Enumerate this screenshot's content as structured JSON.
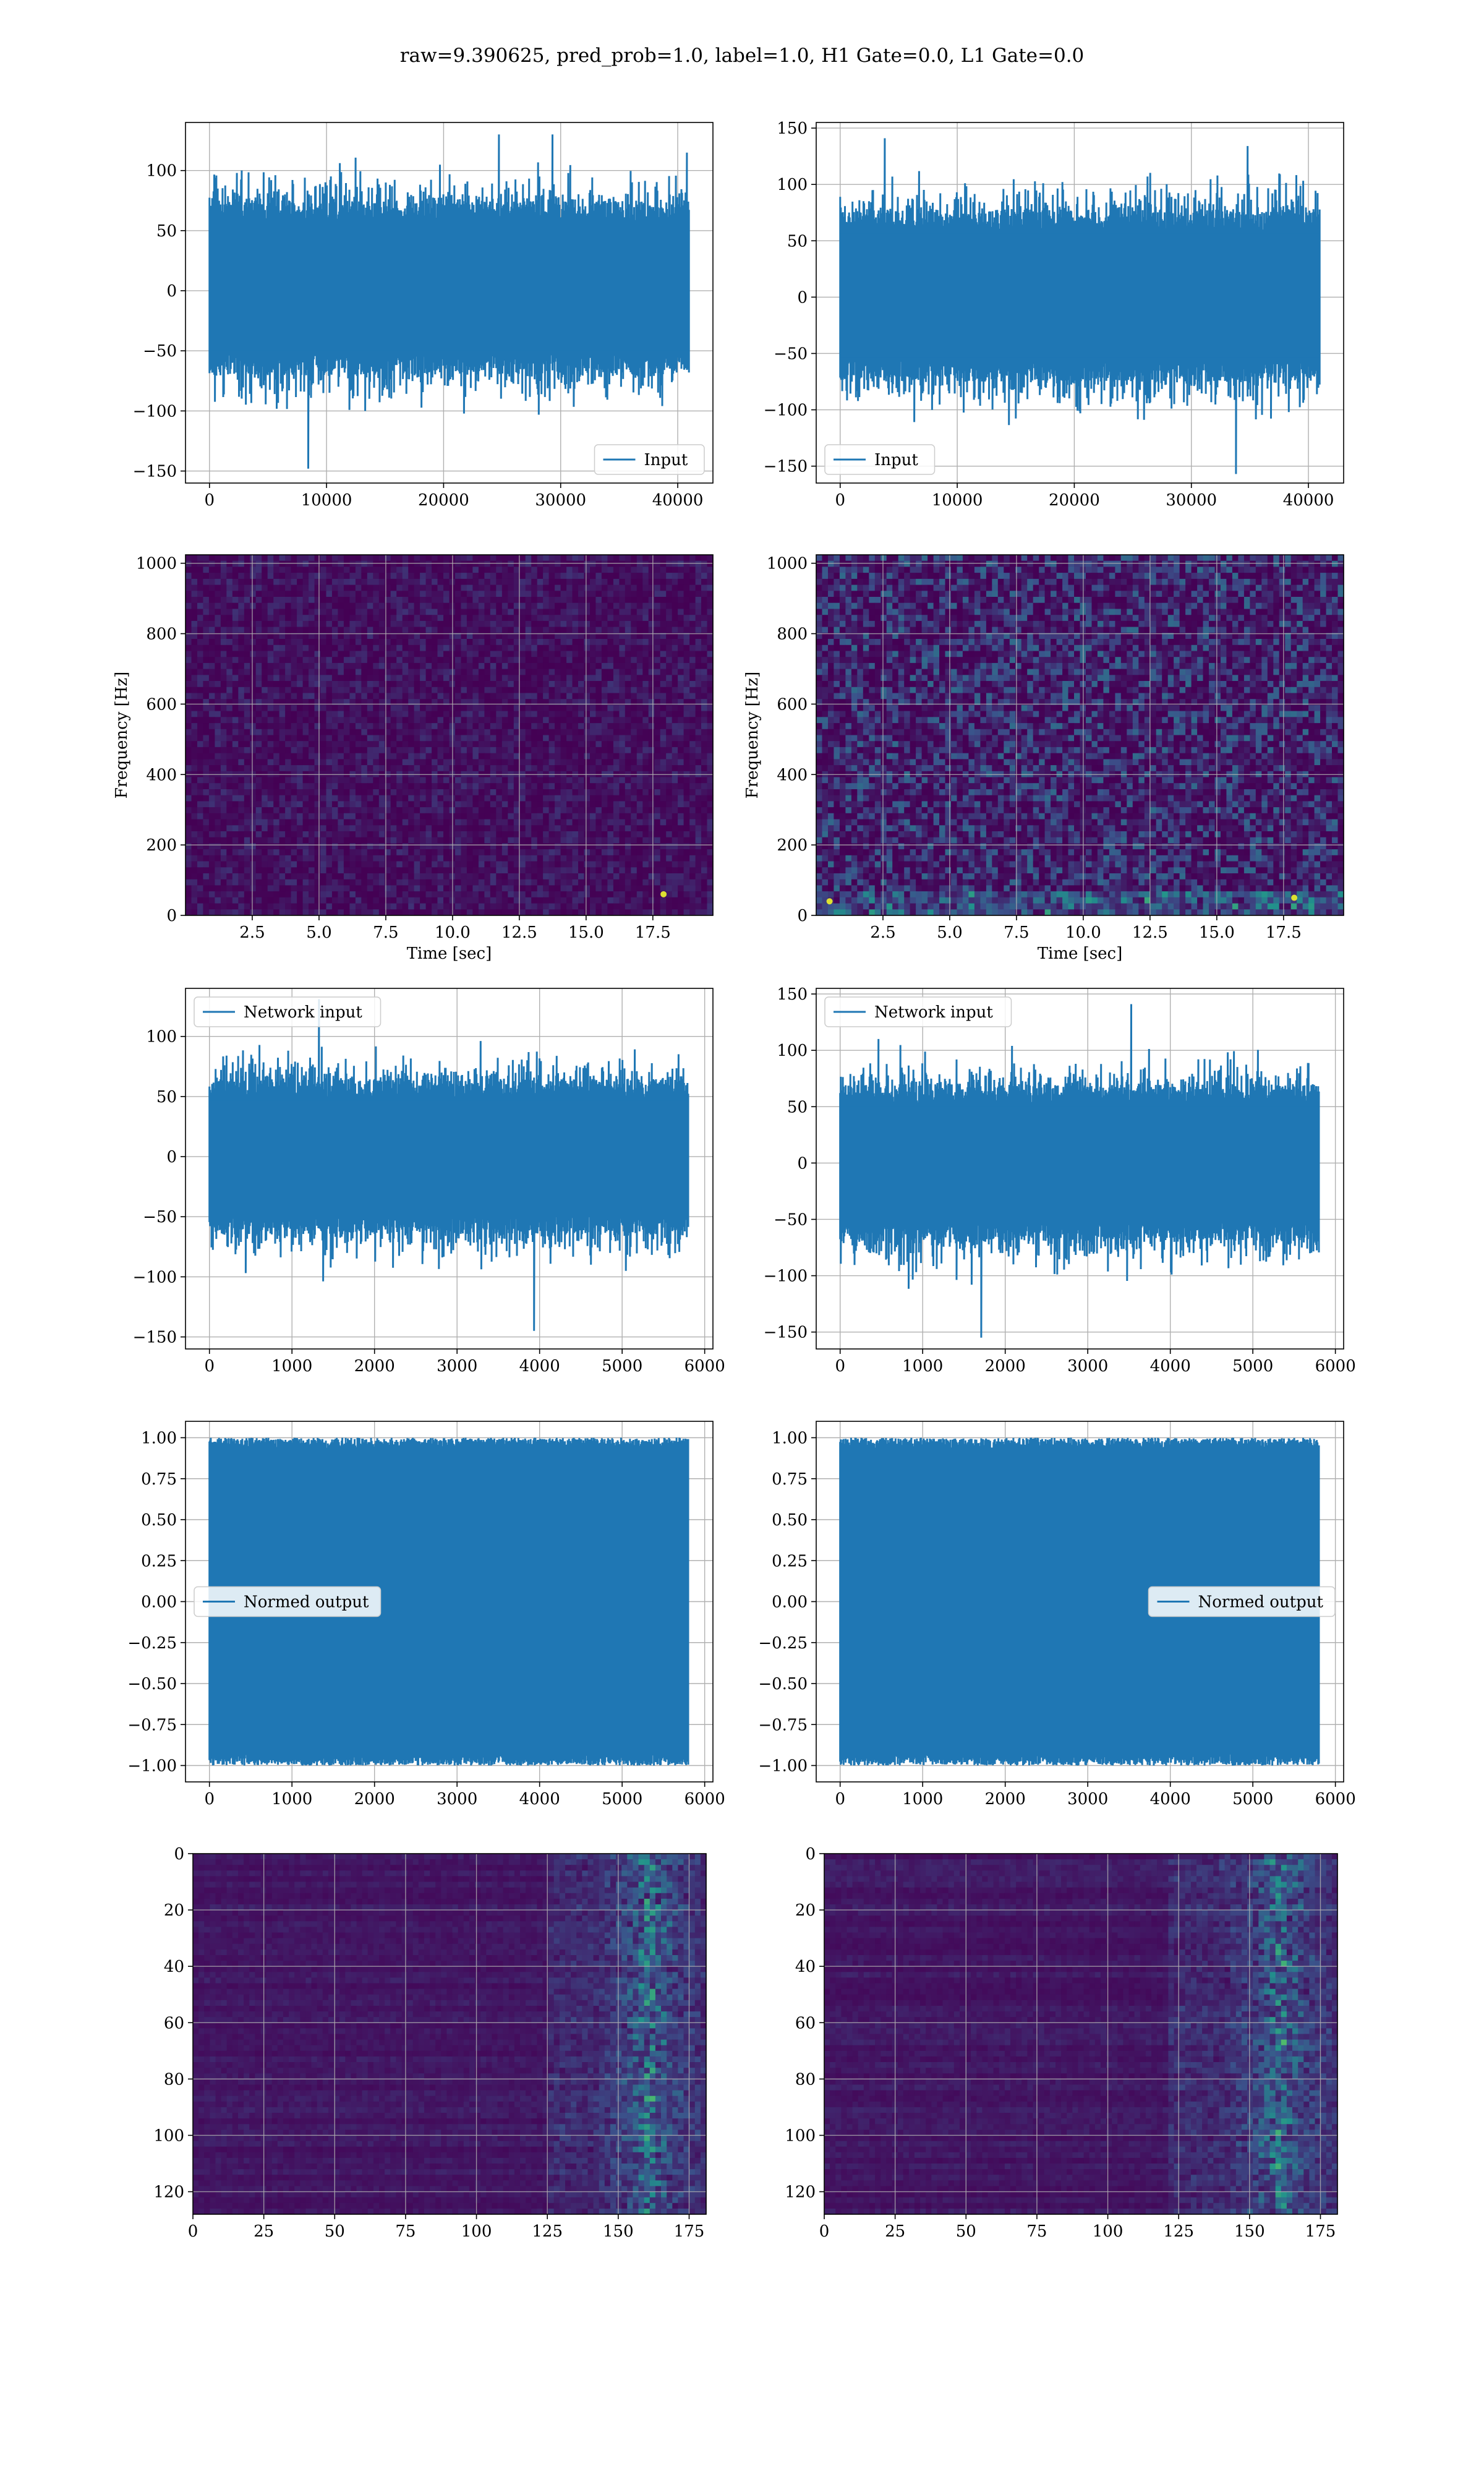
{
  "suptitle": "raw=9.390625, pred_prob=1.0, label=1.0, H1 Gate=0.0, L1 Gate=0.0",
  "colors": {
    "line": "#1f77b4",
    "grid": "#b0b0b0",
    "spine": "#000000",
    "heat_low": "#440154",
    "heat_high": "#fde725"
  },
  "chart_data": [
    {
      "id": "row1-left",
      "type": "line",
      "legend": "Input",
      "legend_loc": "lower right",
      "xlim": [
        -2048,
        43008
      ],
      "ylim": [
        -160,
        140
      ],
      "xticks": [
        0,
        10000,
        20000,
        30000,
        40000
      ],
      "yticks": [
        -150,
        -100,
        -50,
        0,
        50,
        100
      ],
      "series": [
        {
          "n": 40960,
          "x_range": [
            0,
            40960
          ],
          "band": [
            -70,
            75
          ],
          "min": -148,
          "max": 130
        }
      ]
    },
    {
      "id": "row1-right",
      "type": "line",
      "legend": "Input",
      "legend_loc": "lower left",
      "xlim": [
        -2048,
        43008
      ],
      "ylim": [
        -165,
        155
      ],
      "xticks": [
        0,
        10000,
        20000,
        30000,
        40000
      ],
      "yticks": [
        -150,
        -100,
        -50,
        0,
        50,
        100,
        150
      ],
      "series": [
        {
          "n": 40960,
          "x_range": [
            0,
            40960
          ],
          "band": [
            -75,
            78
          ],
          "min": -157,
          "max": 141
        }
      ]
    },
    {
      "id": "row2-left",
      "type": "heatmap",
      "xlabel": "Time [sec]",
      "ylabel": "Frequency [Hz]",
      "xlim": [
        0,
        19.75
      ],
      "ylim": [
        0,
        1024
      ],
      "xticks": [
        2.5,
        5.0,
        7.5,
        10.0,
        12.5,
        15.0,
        17.5
      ],
      "yticks": [
        0,
        200,
        400,
        600,
        800,
        1000
      ],
      "intensity": "low",
      "hotspots": [
        {
          "t": 17.9,
          "f": 60
        }
      ]
    },
    {
      "id": "row2-right",
      "type": "heatmap",
      "xlabel": "Time [sec]",
      "ylabel": "Frequency [Hz]",
      "xlim": [
        0,
        19.75
      ],
      "ylim": [
        0,
        1024
      ],
      "xticks": [
        2.5,
        5.0,
        7.5,
        10.0,
        12.5,
        15.0,
        17.5
      ],
      "yticks": [
        0,
        200,
        400,
        600,
        800,
        1000
      ],
      "intensity": "medium",
      "hotspots": [
        {
          "t": 0.5,
          "f": 40
        },
        {
          "t": 17.9,
          "f": 50
        }
      ]
    },
    {
      "id": "row3-left",
      "type": "line",
      "legend": "Network input",
      "legend_loc": "upper left",
      "xlim": [
        -290,
        6100
      ],
      "ylim": [
        -160,
        140
      ],
      "xticks": [
        0,
        1000,
        2000,
        3000,
        4000,
        5000,
        6000
      ],
      "yticks": [
        -150,
        -100,
        -50,
        0,
        50,
        100
      ],
      "series": [
        {
          "n": 5800,
          "x_range": [
            0,
            5800
          ],
          "band": [
            -65,
            65
          ],
          "min": -145,
          "max": 131
        }
      ]
    },
    {
      "id": "row3-right",
      "type": "line",
      "legend": "Network input",
      "legend_loc": "upper left",
      "xlim": [
        -290,
        6100
      ],
      "ylim": [
        -165,
        155
      ],
      "xticks": [
        0,
        1000,
        2000,
        3000,
        4000,
        5000,
        6000
      ],
      "yticks": [
        -150,
        -100,
        -50,
        0,
        50,
        100,
        150
      ],
      "series": [
        {
          "n": 5800,
          "x_range": [
            0,
            5800
          ],
          "band": [
            -70,
            70
          ],
          "min": -155,
          "max": 141
        }
      ]
    },
    {
      "id": "row4-left",
      "type": "line",
      "legend": "Normed output",
      "legend_loc": "center left",
      "xlim": [
        -290,
        6100
      ],
      "ylim": [
        -1.1,
        1.1
      ],
      "xticks": [
        0,
        1000,
        2000,
        3000,
        4000,
        5000,
        6000
      ],
      "yticks": [
        -1.0,
        -0.75,
        -0.5,
        -0.25,
        0.0,
        0.25,
        0.5,
        0.75,
        1.0
      ],
      "ytick_labels": [
        "−1.00",
        "−0.75",
        "−0.50",
        "−0.25",
        "0.00",
        "0.25",
        "0.50",
        "0.75",
        "1.00"
      ],
      "series": [
        {
          "n": 5800,
          "x_range": [
            0,
            5800
          ],
          "band": [
            -0.93,
            0.93
          ],
          "min": -1.0,
          "max": 1.0
        }
      ]
    },
    {
      "id": "row4-right",
      "type": "line",
      "legend": "Normed output",
      "legend_loc": "center right",
      "xlim": [
        -290,
        6100
      ],
      "ylim": [
        -1.1,
        1.1
      ],
      "xticks": [
        0,
        1000,
        2000,
        3000,
        4000,
        5000,
        6000
      ],
      "yticks": [
        -1.0,
        -0.75,
        -0.5,
        -0.25,
        0.0,
        0.25,
        0.5,
        0.75,
        1.0
      ],
      "ytick_labels": [
        "−1.00",
        "−0.75",
        "−0.50",
        "−0.25",
        "0.00",
        "0.25",
        "0.50",
        "0.75",
        "1.00"
      ],
      "series": [
        {
          "n": 5800,
          "x_range": [
            0,
            5800
          ],
          "band": [
            -0.93,
            0.93
          ],
          "min": -1.0,
          "max": 1.0
        }
      ]
    },
    {
      "id": "row5-left",
      "type": "heatmap",
      "xlim": [
        0,
        181
      ],
      "ylim": [
        128,
        0
      ],
      "xticks": [
        0,
        25,
        50,
        75,
        100,
        125,
        150,
        175
      ],
      "yticks": [
        0,
        20,
        40,
        60,
        80,
        100,
        120
      ],
      "rows": 128,
      "cols": 181,
      "activity_start": 125,
      "activity_center": 160
    },
    {
      "id": "row5-right",
      "type": "heatmap",
      "xlim": [
        0,
        181
      ],
      "ylim": [
        128,
        0
      ],
      "xticks": [
        0,
        25,
        50,
        75,
        100,
        125,
        150,
        175
      ],
      "yticks": [
        0,
        20,
        40,
        60,
        80,
        100,
        120
      ],
      "rows": 128,
      "cols": 181,
      "activity_start": 120,
      "activity_center": 160
    }
  ]
}
